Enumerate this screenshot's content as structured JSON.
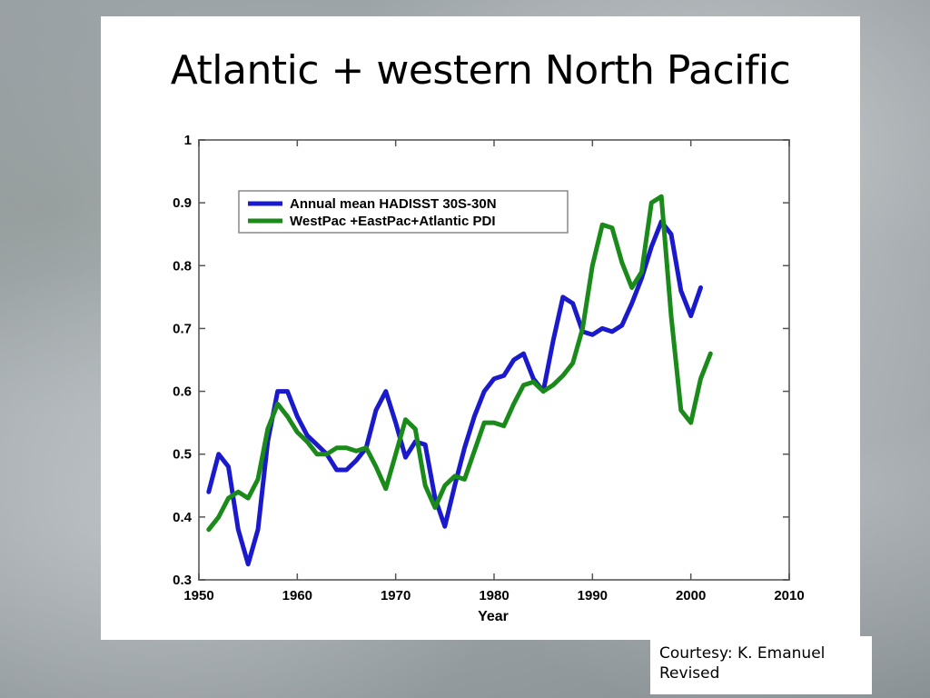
{
  "slide": {
    "title": "Atlantic + western North Pacific",
    "credit_line1": "Courtesy: K. Emanuel",
    "credit_line2": "Revised"
  },
  "chart_data": {
    "type": "line",
    "xlabel": "Year",
    "ylabel": "",
    "xlim": [
      1950,
      2010
    ],
    "ylim": [
      0.3,
      1.0
    ],
    "xticks": [
      1950,
      1960,
      1970,
      1980,
      1990,
      2000,
      2010
    ],
    "yticks": [
      0.3,
      0.4,
      0.5,
      0.6,
      0.7,
      0.8,
      0.9,
      1
    ],
    "legend_position": "top-left",
    "grid": false,
    "series": [
      {
        "name": "Annual mean HADISST 30S-30N",
        "color": "#1a1acc",
        "x": [
          1951,
          1952,
          1953,
          1954,
          1955,
          1956,
          1957,
          1958,
          1959,
          1960,
          1961,
          1962,
          1963,
          1964,
          1965,
          1966,
          1967,
          1968,
          1969,
          1970,
          1971,
          1972,
          1973,
          1974,
          1975,
          1976,
          1977,
          1978,
          1979,
          1980,
          1981,
          1982,
          1983,
          1984,
          1985,
          1986,
          1987,
          1988,
          1989,
          1990,
          1991,
          1992,
          1993,
          1994,
          1995,
          1996,
          1997,
          1998,
          1999,
          2000,
          2001
        ],
        "y": [
          0.44,
          0.5,
          0.48,
          0.38,
          0.325,
          0.38,
          0.52,
          0.6,
          0.6,
          0.56,
          0.53,
          0.515,
          0.5,
          0.475,
          0.475,
          0.49,
          0.51,
          0.57,
          0.6,
          0.55,
          0.495,
          0.52,
          0.515,
          0.43,
          0.385,
          0.45,
          0.51,
          0.56,
          0.6,
          0.62,
          0.625,
          0.65,
          0.66,
          0.62,
          0.6,
          0.68,
          0.75,
          0.74,
          0.695,
          0.69,
          0.7,
          0.695,
          0.705,
          0.74,
          0.78,
          0.83,
          0.87,
          0.85,
          0.76,
          0.72,
          0.765
        ]
      },
      {
        "name": "WestPac +EastPac+Atlantic PDI",
        "color": "#1a8a1a",
        "x": [
          1951,
          1952,
          1953,
          1954,
          1955,
          1956,
          1957,
          1958,
          1959,
          1960,
          1961,
          1962,
          1963,
          1964,
          1965,
          1966,
          1967,
          1968,
          1969,
          1970,
          1971,
          1972,
          1973,
          1974,
          1975,
          1976,
          1977,
          1978,
          1979,
          1980,
          1981,
          1982,
          1983,
          1984,
          1985,
          1986,
          1987,
          1988,
          1989,
          1990,
          1991,
          1992,
          1993,
          1994,
          1995,
          1996,
          1997,
          1998,
          1999,
          2000,
          2001,
          2002
        ],
        "y": [
          0.38,
          0.4,
          0.43,
          0.44,
          0.43,
          0.46,
          0.54,
          0.58,
          0.56,
          0.535,
          0.52,
          0.5,
          0.5,
          0.51,
          0.51,
          0.505,
          0.51,
          0.48,
          0.445,
          0.5,
          0.555,
          0.54,
          0.45,
          0.415,
          0.45,
          0.465,
          0.46,
          0.505,
          0.55,
          0.55,
          0.545,
          0.58,
          0.61,
          0.615,
          0.6,
          0.61,
          0.625,
          0.645,
          0.7,
          0.8,
          0.865,
          0.86,
          0.805,
          0.765,
          0.79,
          0.9,
          0.91,
          0.72,
          0.57,
          0.55,
          0.62,
          0.66
        ]
      }
    ]
  }
}
